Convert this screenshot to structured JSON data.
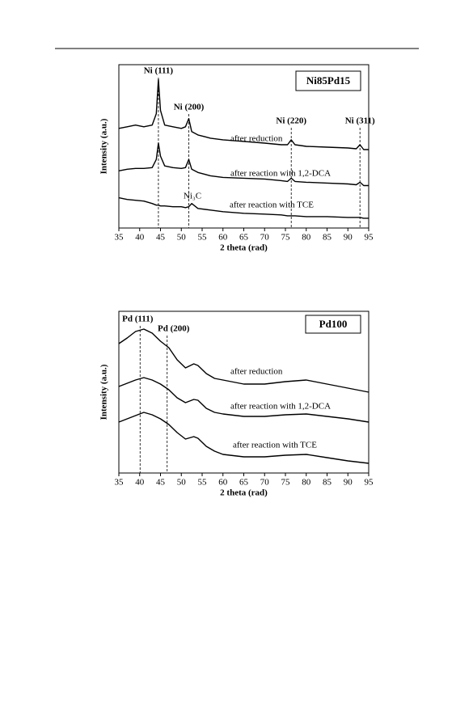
{
  "chart_data": [
    {
      "type": "line",
      "box_label": "Ni85Pd15",
      "xlabel": "2 theta (rad)",
      "ylabel": "Intensity (a.u.)",
      "x": [
        35,
        37,
        39,
        41,
        43,
        44,
        44.5,
        45,
        46,
        48,
        50,
        51,
        51.8,
        52.5,
        54,
        57,
        60,
        65,
        70,
        74,
        75.5,
        76.4,
        77.3,
        80,
        85,
        90,
        92,
        92.9,
        93.8,
        95
      ],
      "series": [
        {
          "name": "after reduction",
          "color": "#000000",
          "values": [
            61,
            62,
            63,
            62,
            63,
            70,
            91,
            72,
            63,
            62,
            61,
            62,
            67,
            59,
            57,
            55,
            54,
            53,
            52,
            51,
            51,
            54,
            51,
            50,
            49.5,
            49,
            48.5,
            51,
            48,
            48
          ]
        },
        {
          "name": "after reaction with 1,2-DCA",
          "color": "#000000",
          "values": [
            35,
            36,
            36.5,
            36.5,
            37,
            42,
            52,
            44,
            38,
            37,
            36.5,
            37,
            42,
            36,
            34,
            32,
            31,
            30.5,
            30,
            29,
            28.5,
            30.5,
            28.5,
            28,
            27.5,
            27,
            26.5,
            28,
            26,
            26
          ]
        },
        {
          "name": "after reaction with TCE",
          "color": "#000000",
          "values": [
            18.5,
            17.5,
            17,
            16.5,
            15,
            14,
            14,
            13.5,
            13.5,
            13,
            13,
            12.5,
            13,
            15,
            12,
            11,
            10,
            9,
            8.5,
            8,
            7.5,
            7.5,
            7.5,
            7,
            7,
            6.5,
            6.5,
            6.5,
            6,
            6
          ]
        }
      ],
      "peaks": [
        {
          "label": "Ni (111)",
          "x": 44.5
        },
        {
          "label": "Ni (200)",
          "x": 51.8
        },
        {
          "label": "Ni (220)",
          "x": 76.4
        },
        {
          "label": "Ni (311)",
          "x": 92.9
        }
      ],
      "annotations": [
        "Ni₃C"
      ],
      "xlim": [
        35,
        95
      ],
      "xticks": [
        35,
        40,
        45,
        50,
        55,
        60,
        65,
        70,
        75,
        80,
        85,
        90,
        95
      ],
      "ylim": [
        0,
        100
      ]
    },
    {
      "type": "line",
      "box_label": "Pd100",
      "xlabel": "2 theta (rad)",
      "ylabel": "Intensity (a.u.)",
      "x": [
        35,
        37,
        39,
        41,
        43,
        45,
        47,
        49,
        51,
        53,
        54,
        56,
        58,
        60,
        65,
        70,
        75,
        80,
        85,
        90,
        95
      ],
      "series": [
        {
          "name": "after reduction",
          "color": "#000000",
          "values": [
            80,
            83.5,
            87.5,
            89,
            86.5,
            81.5,
            77.5,
            70,
            65,
            67.5,
            66.5,
            61.5,
            58.5,
            57.5,
            55,
            55,
            56.5,
            57.5,
            55,
            52.5,
            50
          ]
        },
        {
          "name": "after reaction with 1,2-DCA",
          "color": "#000000",
          "values": [
            53.5,
            55.5,
            57.5,
            59,
            57.5,
            55,
            51.5,
            46.5,
            43.5,
            45.5,
            45,
            40,
            37.5,
            36.5,
            35,
            35,
            36,
            36.5,
            35,
            33.5,
            31.5
          ]
        },
        {
          "name": "after reaction with TCE",
          "color": "#000000",
          "values": [
            31.5,
            33.5,
            35.5,
            37.5,
            36,
            33.5,
            30,
            25,
            21,
            22.5,
            21.5,
            16.5,
            13.5,
            11.5,
            10,
            10,
            11,
            11.5,
            9.5,
            7.5,
            6
          ]
        }
      ],
      "peaks": [
        {
          "label": "Pd (111)",
          "x": 40.1
        },
        {
          "label": "Pd (200)",
          "x": 46.6
        }
      ],
      "annotations": [],
      "xlim": [
        35,
        95
      ],
      "xticks": [
        35,
        40,
        45,
        50,
        55,
        60,
        65,
        70,
        75,
        80,
        85,
        90,
        95
      ],
      "ylim": [
        0,
        100
      ]
    }
  ]
}
